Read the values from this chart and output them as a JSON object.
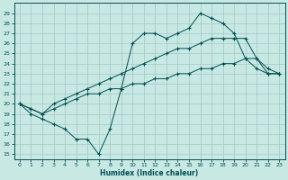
{
  "xlabel": "Humidex (Indice chaleur)",
  "bg_color": "#c8e8e4",
  "grid_color": "#a0c8c4",
  "line_color": "#005050",
  "xlim": [
    -0.5,
    23.5
  ],
  "ylim": [
    14.5,
    30.0
  ],
  "yticks": [
    15,
    16,
    17,
    18,
    19,
    20,
    21,
    22,
    23,
    24,
    25,
    26,
    27,
    28,
    29
  ],
  "xticks": [
    0,
    1,
    2,
    3,
    4,
    5,
    6,
    7,
    8,
    9,
    10,
    11,
    12,
    13,
    14,
    15,
    16,
    17,
    18,
    19,
    20,
    21,
    22,
    23
  ],
  "line1_x": [
    0,
    1,
    2,
    3,
    4,
    5,
    6,
    7,
    8,
    9,
    10,
    11,
    12,
    13,
    14,
    15,
    16,
    17,
    18,
    19,
    20,
    21,
    22,
    23
  ],
  "line1_y": [
    20.0,
    19.0,
    18.5,
    18.0,
    17.5,
    16.5,
    16.5,
    15.0,
    17.5,
    21.5,
    26.0,
    27.0,
    27.0,
    26.5,
    27.0,
    27.5,
    29.0,
    28.5,
    28.0,
    27.0,
    24.5,
    23.5,
    23.0,
    23.0
  ],
  "line2_x": [
    0,
    1,
    2,
    3,
    4,
    5,
    6,
    7,
    8,
    9,
    10,
    11,
    12,
    13,
    14,
    15,
    16,
    17,
    18,
    19,
    20,
    21,
    22,
    23
  ],
  "line2_y": [
    20.0,
    19.5,
    19.0,
    19.5,
    20.0,
    20.5,
    21.0,
    21.0,
    21.5,
    21.5,
    22.0,
    22.0,
    22.5,
    22.5,
    23.0,
    23.0,
    23.5,
    23.5,
    24.0,
    24.0,
    24.5,
    24.5,
    23.0,
    23.0
  ],
  "line3_x": [
    0,
    1,
    2,
    3,
    4,
    5,
    6,
    7,
    8,
    9,
    10,
    11,
    12,
    13,
    14,
    15,
    16,
    17,
    18,
    19,
    20,
    21,
    22,
    23
  ],
  "line3_y": [
    20.0,
    19.5,
    19.0,
    20.0,
    20.5,
    21.0,
    21.5,
    22.0,
    22.5,
    23.0,
    23.5,
    24.0,
    24.5,
    25.0,
    25.5,
    25.5,
    26.0,
    26.5,
    26.5,
    26.5,
    26.5,
    24.5,
    23.5,
    23.0
  ]
}
